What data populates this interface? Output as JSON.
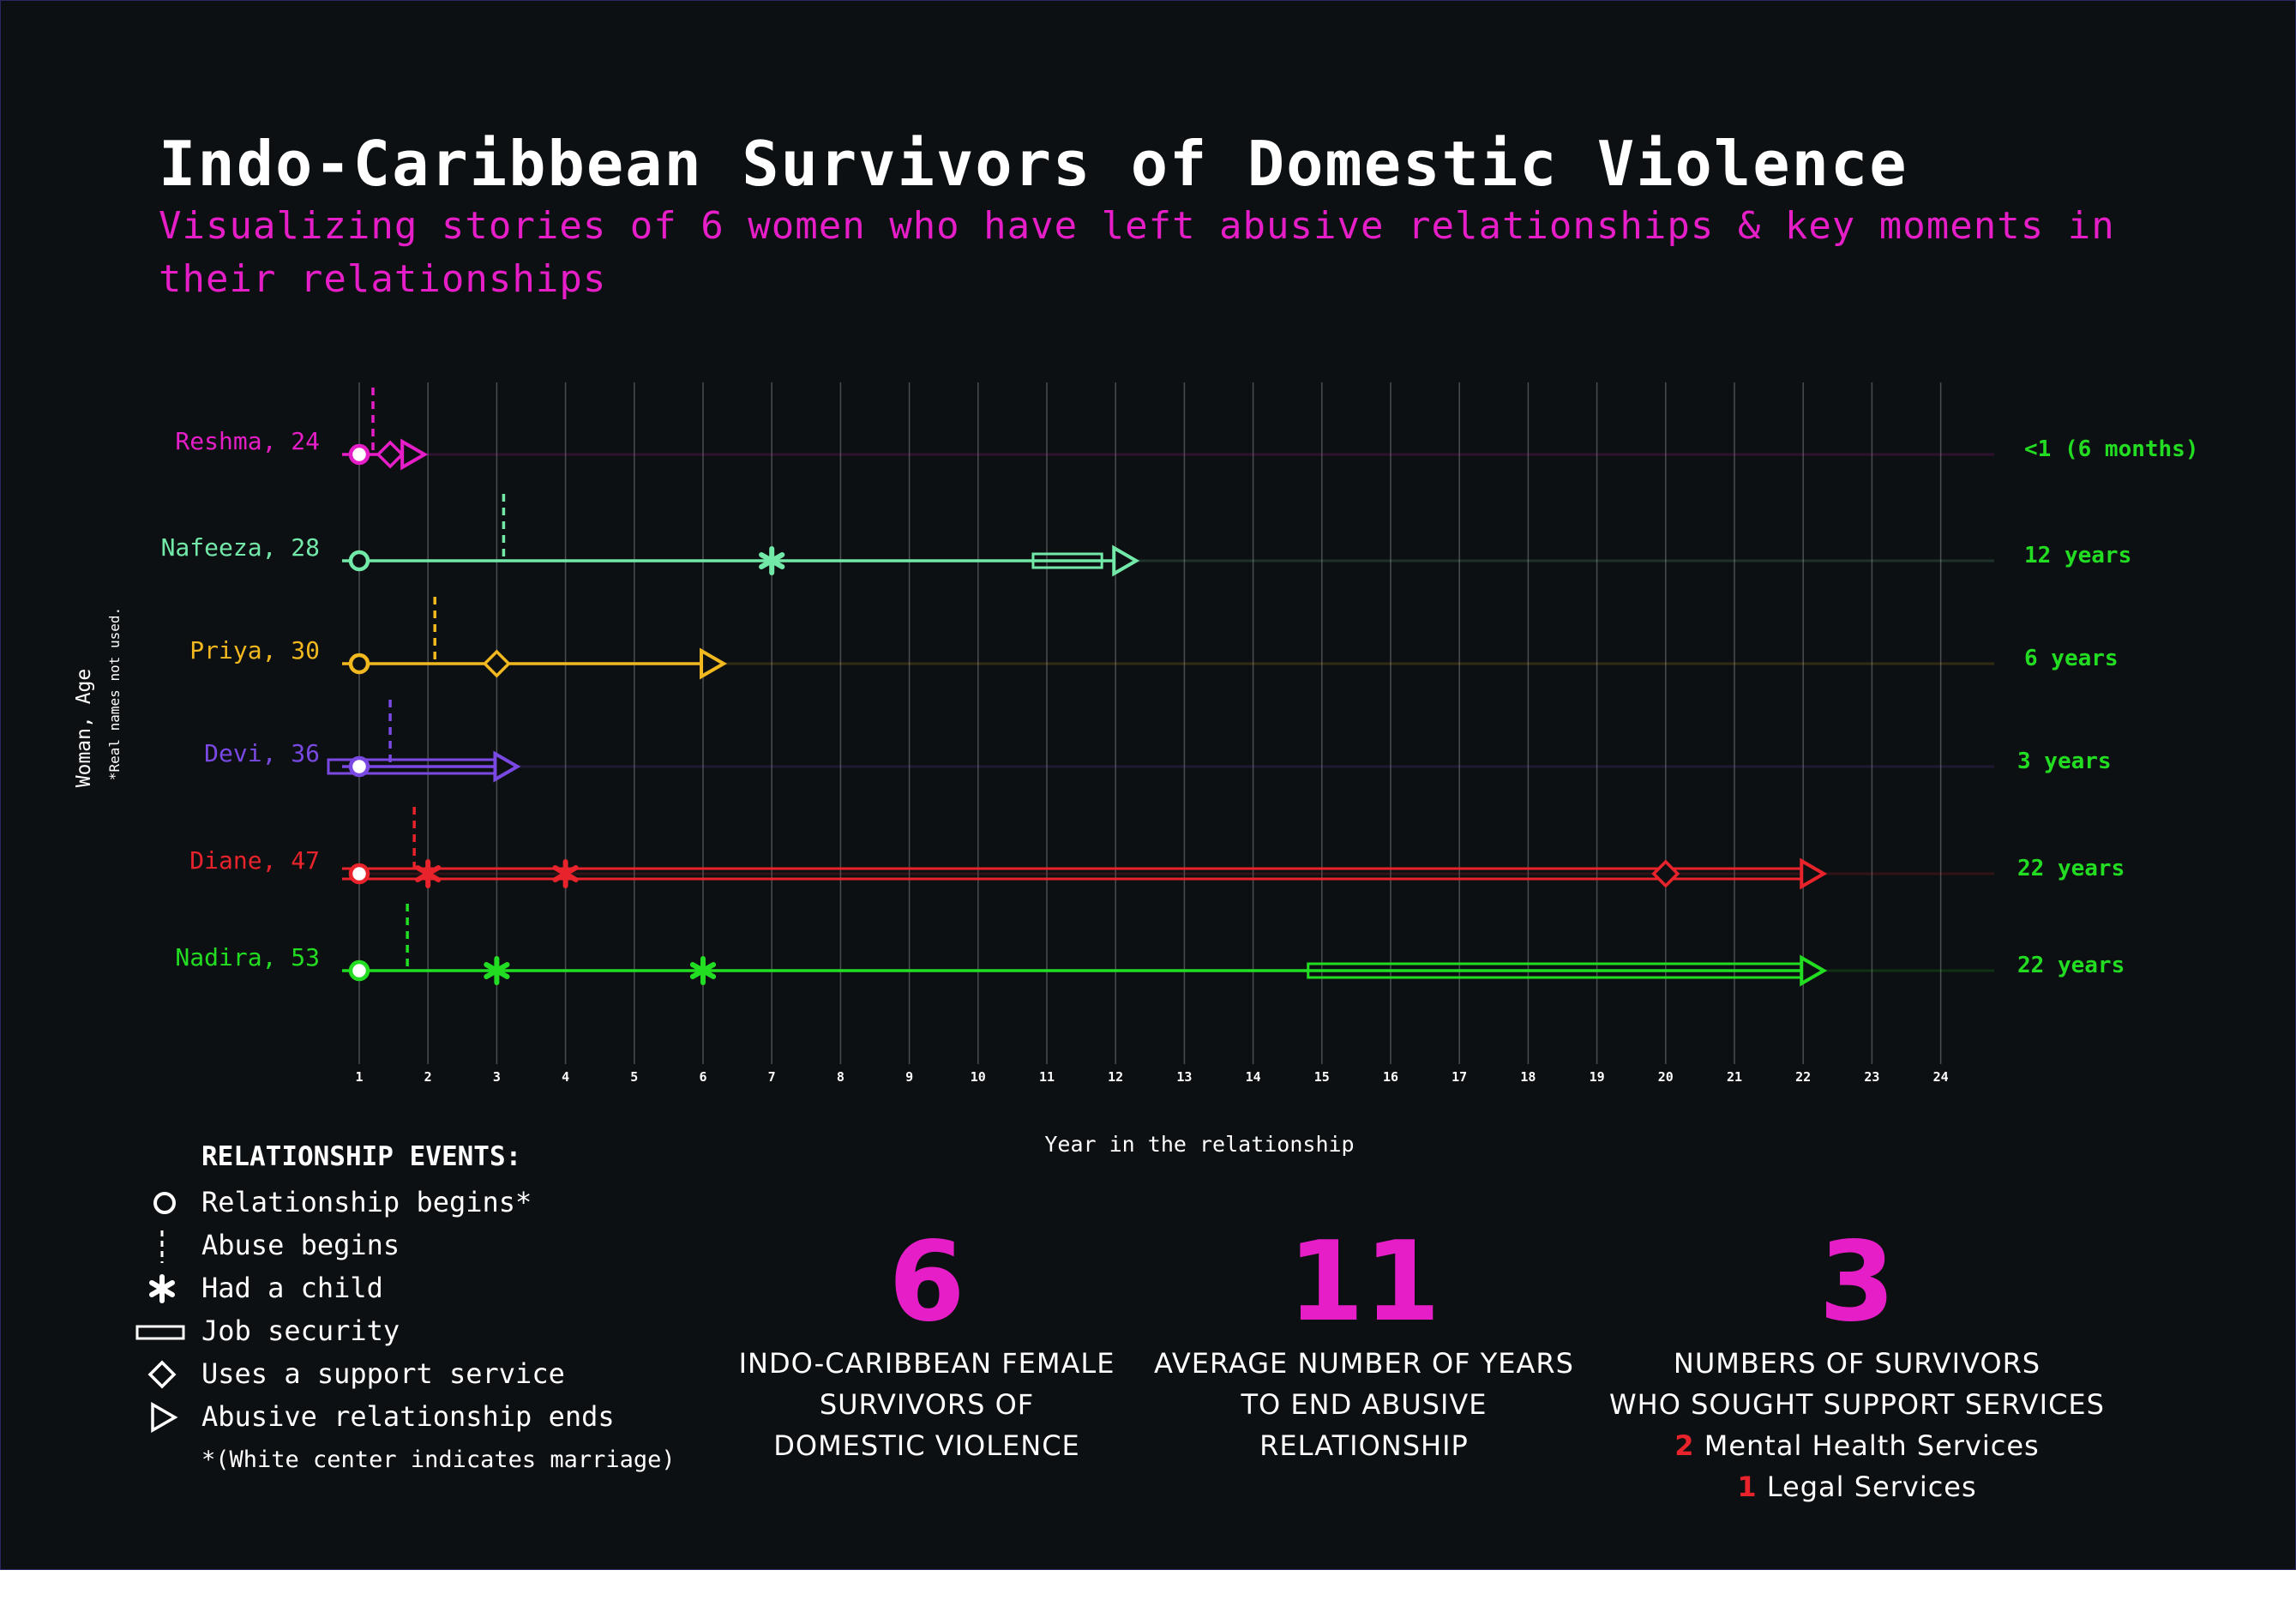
{
  "title": "Indo-Caribbean Survivors of Domestic Violence",
  "subtitle": "Visualizing stories of 6 women who have left abusive relationships & key moments in their relationships",
  "chart_data": {
    "type": "timeline",
    "ylabel": "Woman, Age",
    "ylabel_note": "*Real names not used.",
    "xlabel": "Year in the relationship",
    "x_ticks": [
      1,
      2,
      3,
      4,
      5,
      6,
      7,
      8,
      9,
      10,
      11,
      12,
      13,
      14,
      15,
      16,
      17,
      18,
      19,
      20,
      21,
      22,
      23,
      24
    ],
    "series": [
      {
        "name": "Reshma, 24",
        "color": "#e61ec8",
        "duration_label": "<1 (6 months)",
        "begin": 1,
        "married": true,
        "abuse_begins": 1.2,
        "children": [],
        "job_security": null,
        "support_service": [
          1.45
        ],
        "end": 1.85,
        "double_line": false
      },
      {
        "name": "Nafeeza, 28",
        "color": "#72e9a8",
        "duration_label": "12 years",
        "begin": 1,
        "married": false,
        "abuse_begins": 3.1,
        "children": [
          7
        ],
        "job_security": [
          10.8,
          11.8
        ],
        "support_service": [],
        "end": 12.2,
        "double_line": false
      },
      {
        "name": "Priya, 30",
        "color": "#f2b81f",
        "duration_label": "6 years",
        "begin": 1,
        "married": false,
        "abuse_begins": 2.1,
        "children": [],
        "job_security": null,
        "support_service": [
          3
        ],
        "end": 6.2,
        "double_line": false
      },
      {
        "name": "Devi, 36",
        "color": "#7a49e3",
        "duration_label": "3 years",
        "begin": 1,
        "married": true,
        "abuse_begins": 1.45,
        "children": [],
        "job_security": [
          0.6,
          3.0
        ],
        "support_service": [],
        "end": 3.2,
        "double_line": false
      },
      {
        "name": "Diane, 47",
        "color": "#e8232b",
        "duration_label": "22 years",
        "begin": 1,
        "married": true,
        "abuse_begins": 1.8,
        "children": [
          2,
          4
        ],
        "job_security": null,
        "support_service": [
          20
        ],
        "end": 22.2,
        "double_line": true
      },
      {
        "name": "Nadira, 53",
        "color": "#22dd22",
        "duration_label": "22 years",
        "begin": 1,
        "married": true,
        "abuse_begins": 1.7,
        "children": [
          3,
          6
        ],
        "job_security": [
          14.8,
          22.0
        ],
        "support_service": [],
        "end": 22.2,
        "double_line": false
      }
    ]
  },
  "duration_color": "#22dd22",
  "legend": {
    "title": "RELATIONSHIP EVENTS:",
    "items": [
      {
        "icon": "circle-icon",
        "label": "Relationship begins*"
      },
      {
        "icon": "dashed-line-icon",
        "label": "Abuse begins"
      },
      {
        "icon": "asterisk-icon",
        "label": "Had a child"
      },
      {
        "icon": "rectangle-icon",
        "label": "Job security"
      },
      {
        "icon": "diamond-icon",
        "label": "Uses a support service"
      },
      {
        "icon": "triangle-icon",
        "label": "Abusive relationship ends"
      }
    ],
    "note": "*(White center indicates marriage)"
  },
  "stats": [
    {
      "number": "6",
      "lines": [
        "INDO-CARIBBEAN FEMALE",
        "SURVIVORS OF",
        "DOMESTIC VIOLENCE"
      ]
    },
    {
      "number": "11",
      "lines": [
        "AVERAGE NUMBER OF YEARS",
        "TO END ABUSIVE",
        "RELATIONSHIP"
      ]
    },
    {
      "number": "3",
      "lines": [
        "NUMBERS OF SURVIVORS",
        "WHO SOUGHT SUPPORT SERVICES"
      ],
      "breakdown": [
        {
          "count": "2",
          "label": "Mental Health Services"
        },
        {
          "count": "1",
          "label": "Legal Services"
        }
      ]
    }
  ],
  "colors": {
    "background": "#0d1012",
    "accent": "#e61ec8",
    "grid": "#4a4d50",
    "count": "#e8232b"
  }
}
